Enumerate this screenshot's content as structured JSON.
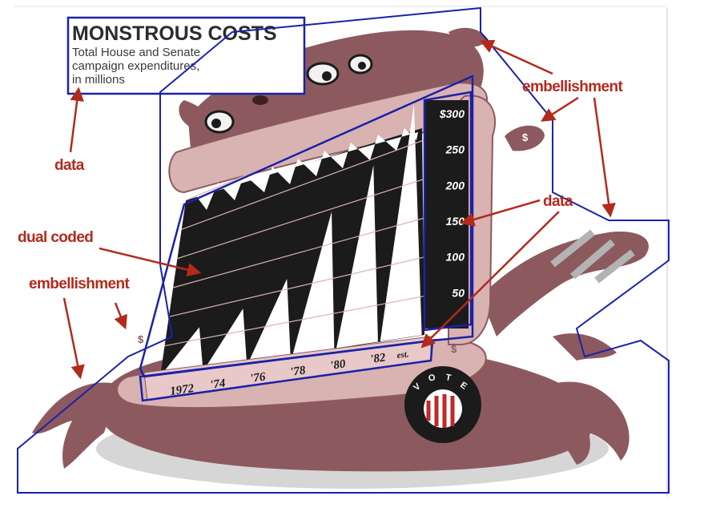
{
  "chart_data": {
    "type": "area",
    "title": "MONSTROUS COSTS",
    "subtitle_lines": [
      "Total House and Senate",
      "campaign expenditures,",
      "in millions"
    ],
    "categories": [
      "1972",
      "'74",
      "'76",
      "'78",
      "'80",
      "'82"
    ],
    "category_note": "est.",
    "values": [
      70,
      85,
      115,
      195,
      240,
      300
    ],
    "y_ticks": [
      "50",
      "100",
      "150",
      "200",
      "250",
      "$300"
    ],
    "ylim": [
      0,
      300
    ]
  },
  "annotations": {
    "data_title": "data",
    "embellishment_top": "embellishment",
    "data_axis": "data",
    "dual_coded": "dual coded",
    "embellishment_left": "embellishment"
  },
  "decor": {
    "vote_letters": [
      "V",
      "O",
      "T",
      "E"
    ],
    "dollar_sign": "$"
  },
  "colors": {
    "monster": "#8c5a5e",
    "monster_light": "#d9b2b2",
    "mouth": "#1b1b1b",
    "teeth": "#ffffff",
    "outline": "#1a22a8",
    "annotation": "#b22a1c"
  }
}
